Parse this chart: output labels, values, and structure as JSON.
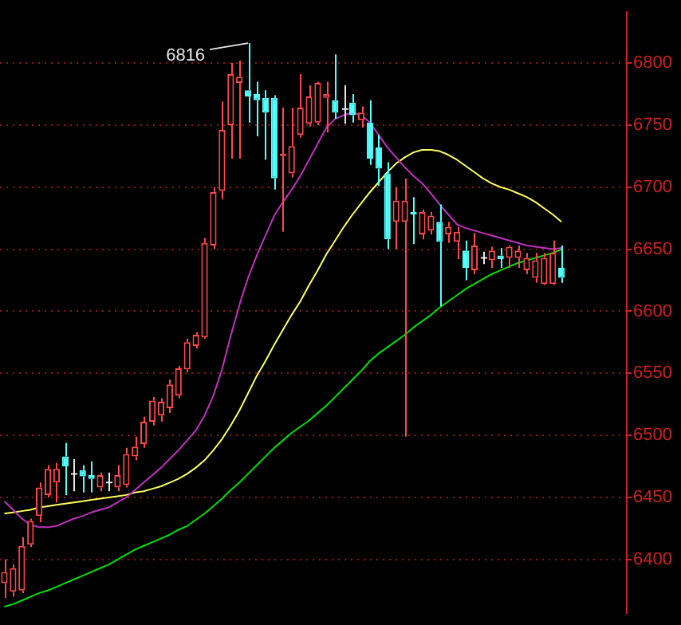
{
  "chart_data": {
    "type": "candlestick",
    "categories": [
      null,
      null,
      null,
      null,
      null,
      null,
      null,
      null,
      null,
      null,
      null,
      null,
      null,
      null,
      null,
      null,
      null,
      null,
      null,
      null,
      null,
      null,
      null,
      null,
      null,
      null,
      null,
      null,
      null,
      null,
      null,
      null,
      null,
      null,
      null,
      null,
      null,
      null,
      null,
      null,
      null,
      null,
      null,
      null,
      null,
      null,
      null,
      null,
      null,
      null,
      null,
      null,
      null,
      null,
      null,
      null,
      null,
      null,
      null,
      null,
      null,
      null,
      null,
      null,
      null,
      null,
      null,
      null,
      null,
      null,
      null,
      null
    ],
    "ohlc": [
      [
        6381,
        6400,
        6369,
        6390
      ],
      [
        6374,
        6396,
        6370,
        6393
      ],
      [
        6375,
        6418,
        6373,
        6411
      ],
      [
        6412,
        6433,
        6410,
        6431
      ],
      [
        6435,
        6462,
        6430,
        6458
      ],
      [
        6452,
        6476,
        6450,
        6473
      ],
      [
        6462,
        6478,
        6446,
        6473
      ],
      [
        6483,
        6494,
        6452,
        6475
      ],
      [
        6469,
        6481,
        6455,
        6469
      ],
      [
        6472,
        6476,
        6454,
        6467
      ],
      [
        6468,
        6479,
        6454,
        6465
      ],
      [
        6458,
        6470,
        6455,
        6468
      ],
      [
        6462,
        6470,
        6455,
        6462
      ],
      [
        6458,
        6476,
        6455,
        6468
      ],
      [
        6460,
        6490,
        6458,
        6485
      ],
      [
        6483,
        6499,
        6480,
        6491
      ],
      [
        6493,
        6515,
        6490,
        6511
      ],
      [
        6511,
        6531,
        6508,
        6528
      ],
      [
        6516,
        6530,
        6511,
        6527
      ],
      [
        6522,
        6545,
        6518,
        6541
      ],
      [
        6532,
        6556,
        6530,
        6554
      ],
      [
        6553,
        6578,
        6551,
        6575
      ],
      [
        6572,
        6583,
        6570,
        6581
      ],
      [
        6579,
        6659,
        6578,
        6655
      ],
      [
        6653,
        6700,
        6650,
        6696
      ],
      [
        6697,
        6769,
        6690,
        6746
      ],
      [
        6750,
        6800,
        6723,
        6791
      ],
      [
        6784,
        6802,
        6723,
        6789
      ],
      [
        6778,
        6816,
        6752,
        6773
      ],
      [
        6775,
        6785,
        6741,
        6770
      ],
      [
        6772,
        6778,
        6722,
        6760
      ],
      [
        6772,
        6774,
        6698,
        6707
      ],
      [
        6725,
        6764,
        6664,
        6727
      ],
      [
        6711,
        6764,
        6708,
        6733
      ],
      [
        6742,
        6791,
        6740,
        6764
      ],
      [
        6751,
        6782,
        6749,
        6773
      ],
      [
        6752,
        6785,
        6750,
        6784
      ],
      [
        6772,
        6785,
        6744,
        6775
      ],
      [
        6770,
        6807,
        6755,
        6760
      ],
      [
        6763,
        6782,
        6751,
        6763
      ],
      [
        6768,
        6775,
        6752,
        6758
      ],
      [
        6754,
        6765,
        6748,
        6760
      ],
      [
        6752,
        6770,
        6718,
        6723
      ],
      [
        6732,
        6742,
        6701,
        6715
      ],
      [
        6711,
        6720,
        6650,
        6658
      ],
      [
        6672,
        6700,
        6650,
        6689
      ],
      [
        6672,
        6707,
        6499,
        6689
      ],
      [
        6680,
        6692,
        6654,
        6678
      ],
      [
        6662,
        6682,
        6658,
        6680
      ],
      [
        6665,
        6680,
        6662,
        6677
      ],
      [
        6672,
        6686,
        6604,
        6656
      ],
      [
        6662,
        6672,
        6655,
        6668
      ],
      [
        6656,
        6668,
        6642,
        6664
      ],
      [
        6649,
        6657,
        6625,
        6635
      ],
      [
        6633,
        6663,
        6630,
        6653
      ],
      [
        6643,
        6648,
        6638,
        6643
      ],
      [
        6641,
        6652,
        6635,
        6649
      ],
      [
        6645,
        6651,
        6635,
        6642
      ],
      [
        6643,
        6653,
        6635,
        6652
      ],
      [
        6643,
        6653,
        6635,
        6649
      ],
      [
        6633,
        6647,
        6630,
        6643
      ],
      [
        6627,
        6647,
        6623,
        6641
      ],
      [
        6622,
        6647,
        6621,
        6643
      ],
      [
        6622,
        6657,
        6621,
        6647
      ],
      [
        6635,
        6653,
        6623,
        6627
      ],
      null,
      null,
      null,
      null,
      null,
      null,
      null
    ],
    "colors": [
      "#ff4848",
      "#ff4848",
      "#ff4848",
      "#ff4848",
      "#ff4848",
      "#ff4848",
      "#ff4848",
      "#54ffff",
      "#e8e8e8",
      "#54ffff",
      "#54ffff",
      "#ff4848",
      "#e8e8e8",
      "#ff4848",
      "#ff4848",
      "#ff4848",
      "#ff4848",
      "#ff4848",
      "#ff4848",
      "#ff4848",
      "#ff4848",
      "#ff4848",
      "#ff4848",
      "#ff4848",
      "#ff4848",
      "#ff4848",
      "#ff4848",
      "#ff4848",
      "#54ffff",
      "#54ffff",
      "#54ffff",
      "#54ffff",
      "#ff4848",
      "#ff4848",
      "#ff4848",
      "#ff4848",
      "#ff4848",
      "#ff4848",
      "#54ffff",
      "#e8e8e8",
      "#54ffff",
      "#ff4848",
      "#54ffff",
      "#54ffff",
      "#54ffff",
      "#ff4848",
      "#ff4848",
      "#54ffff",
      "#ff4848",
      "#ff4848",
      "#54ffff",
      "#ff4848",
      "#ff4848",
      "#54ffff",
      "#ff4848",
      "#e8e8e8",
      "#ff4848",
      "#54ffff",
      "#ff4848",
      "#ff4848",
      "#ff4848",
      "#ff4848",
      "#ff4848",
      "#ff4848",
      "#54ffff",
      null,
      null,
      null,
      null,
      null,
      null,
      null
    ],
    "series": [
      {
        "type": "line",
        "color": "#c030c0",
        "values": [
          6447,
          6440,
          6433,
          6428,
          6426,
          6426,
          6427,
          6430,
          6433,
          6435,
          6438,
          6440,
          6442,
          6446,
          6450,
          6456,
          6462,
          6468,
          6474,
          6481,
          6488,
          6496,
          6504,
          6516,
          6532,
          6553,
          6580,
          6605,
          6627,
          6645,
          6661,
          6677,
          6688,
          6698,
          6709,
          6722,
          6735,
          6748,
          6755,
          6758,
          6760,
          6758,
          6752,
          6742,
          6732,
          6724,
          6716,
          6709,
          6703,
          6695,
          6686,
          6678,
          6670,
          6667,
          6665,
          6663,
          6661,
          6659,
          6657,
          6655,
          6653,
          6652,
          6651,
          6650,
          6651,
          null,
          null,
          null,
          null,
          null,
          null,
          null
        ]
      },
      {
        "type": "line",
        "color": "#ffff60",
        "values": [
          6437,
          6438,
          6439,
          6440,
          6442,
          6443,
          6444,
          6445,
          6446,
          6447,
          6448,
          6449,
          6450,
          6451,
          6452,
          6454,
          6455,
          6457,
          6459,
          6462,
          6465,
          6469,
          6474,
          6480,
          6488,
          6497,
          6508,
          6520,
          6534,
          6548,
          6560,
          6573,
          6585,
          6597,
          6608,
          6621,
          6633,
          6646,
          6657,
          6668,
          6678,
          6687,
          6696,
          6704,
          6712,
          6719,
          6724,
          6728,
          6730,
          6730,
          6729,
          6726,
          6722,
          6717,
          6712,
          6707,
          6703,
          6700,
          6698,
          6695,
          6692,
          6688,
          6683,
          6678,
          6672,
          null,
          null,
          null,
          null,
          null,
          null,
          null
        ]
      },
      {
        "type": "line",
        "color": "#00e000",
        "values": [
          6362,
          6364,
          6367,
          6370,
          6373,
          6375,
          6378,
          6381,
          6384,
          6387,
          6390,
          6393,
          6396,
          6400,
          6404,
          6408,
          6411,
          6414,
          6417,
          6420,
          6424,
          6427,
          6432,
          6437,
          6443,
          6449,
          6456,
          6462,
          6469,
          6476,
          6483,
          6490,
          6496,
          6502,
          6507,
          6512,
          6518,
          6524,
          6531,
          6538,
          6545,
          6552,
          6560,
          6566,
          6571,
          6576,
          6581,
          6587,
          6592,
          6597,
          6603,
          6608,
          6613,
          6618,
          6622,
          6626,
          6630,
          6633,
          6636,
          6639,
          6641,
          6643,
          6645,
          6647,
          6650,
          null,
          null,
          null,
          null,
          null,
          null,
          null
        ]
      }
    ],
    "ylim": [
      6357,
      6841
    ],
    "yticks": [
      6400,
      6450,
      6500,
      6550,
      6600,
      6650,
      6700,
      6750,
      6800
    ],
    "grid": "y",
    "legend": false,
    "annotations": [
      "6816"
    ]
  }
}
